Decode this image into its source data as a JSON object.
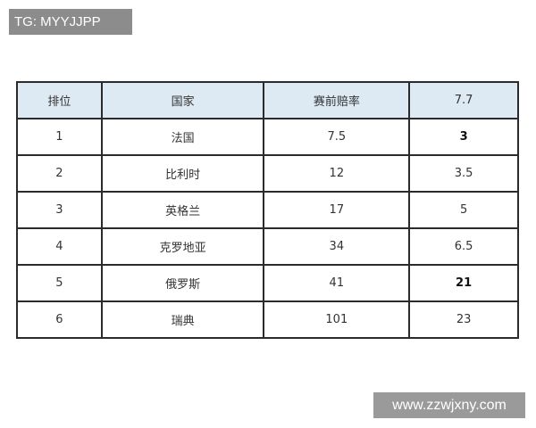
{
  "tag": "TG: MYYJJPP",
  "watermark": "www.zzwjxny.com",
  "table": {
    "header": [
      "排位",
      "国家",
      "赛前赔率",
      "7.7"
    ],
    "rows": [
      [
        "1",
        "法国",
        "7.5",
        "3"
      ],
      [
        "2",
        "比利时",
        "12",
        "3.5"
      ],
      [
        "3",
        "英格兰",
        "17",
        "5"
      ],
      [
        "4",
        "克罗地亚",
        "34",
        "6.5"
      ],
      [
        "5",
        "俄罗斯",
        "41",
        "21"
      ],
      [
        "6",
        "瑞典",
        "101",
        "23"
      ]
    ]
  }
}
